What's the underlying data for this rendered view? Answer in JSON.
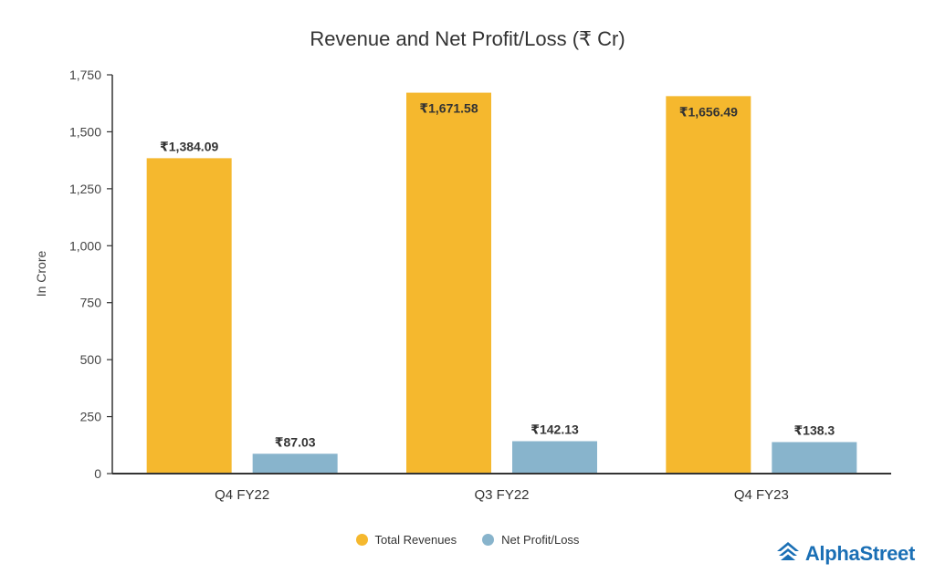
{
  "chart_data": {
    "type": "bar",
    "title": "Revenue and Net Profit/Loss (₹ Cr)",
    "xlabel": "",
    "ylabel": "In Crore",
    "categories": [
      "Q4 FY22",
      "Q3 FY22",
      "Q4 FY23"
    ],
    "series": [
      {
        "name": "Total Revenues",
        "color": "#f5b82e",
        "values": [
          1384.09,
          1671.58,
          1656.49
        ],
        "labels": [
          "₹1,384.09",
          "₹1,671.58",
          "₹1,656.49"
        ]
      },
      {
        "name": "Net Profit/Loss",
        "color": "#88b4cc",
        "values": [
          87.03,
          142.13,
          138.3
        ],
        "labels": [
          "₹87.03",
          "₹142.13",
          "₹138.3"
        ]
      }
    ],
    "ylim": [
      0,
      1750
    ],
    "yticks": [
      0,
      250,
      500,
      750,
      1000,
      1250,
      1500,
      1750
    ],
    "ytick_labels": [
      "0",
      "250",
      "500",
      "750",
      "1,000",
      "1,250",
      "1,500",
      "1,750"
    ],
    "grid": false,
    "legend_position": "bottom-center"
  },
  "brand": {
    "name": "AlphaStreet",
    "icon": "alphastreet-logo-icon",
    "color": "#1a6fb5"
  }
}
